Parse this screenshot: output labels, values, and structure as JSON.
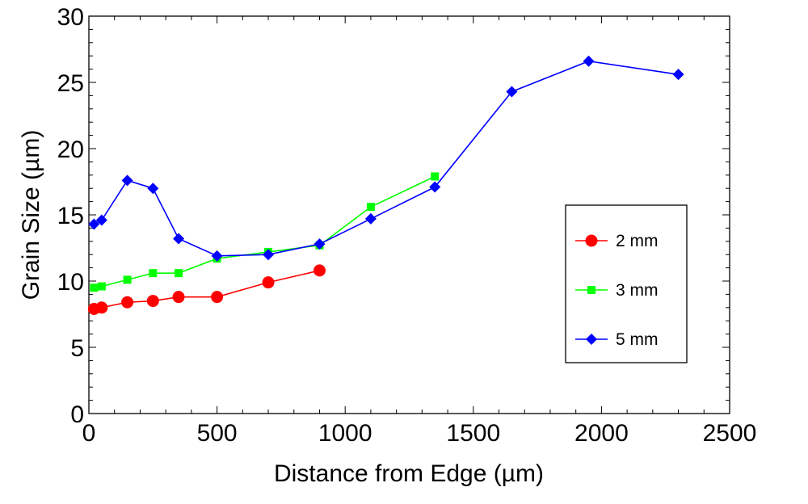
{
  "chart_data": {
    "type": "line",
    "title": "",
    "xlabel": "Distance from Edge (µm)",
    "ylabel": "Grain Size (µm)",
    "xlim": [
      0,
      2500
    ],
    "ylim": [
      0,
      30
    ],
    "xticks": [
      0,
      500,
      1000,
      1500,
      2000,
      2500
    ],
    "yticks": [
      0,
      5,
      10,
      15,
      20,
      25,
      30
    ],
    "grid": false,
    "legend_position": "right",
    "series": [
      {
        "name": "2 mm",
        "color": "#ff0000",
        "marker": "circle",
        "x": [
          20,
          50,
          150,
          250,
          350,
          500,
          700,
          900
        ],
        "y": [
          7.9,
          8.0,
          8.4,
          8.5,
          8.8,
          8.8,
          9.9,
          10.8
        ]
      },
      {
        "name": "3 mm",
        "color": "#00ff00",
        "marker": "square",
        "x": [
          20,
          50,
          150,
          250,
          350,
          500,
          700,
          900,
          1100,
          1350
        ],
        "y": [
          9.5,
          9.6,
          10.1,
          10.6,
          10.6,
          11.7,
          12.2,
          12.7,
          15.6,
          17.9
        ]
      },
      {
        "name": "5 mm",
        "color": "#0000ff",
        "marker": "diamond",
        "x": [
          20,
          50,
          150,
          250,
          350,
          500,
          700,
          900,
          1100,
          1350,
          1650,
          1950,
          2300
        ],
        "y": [
          14.3,
          14.6,
          17.6,
          17.0,
          13.2,
          11.9,
          12.0,
          12.8,
          14.7,
          17.1,
          24.3,
          26.6,
          25.6
        ]
      }
    ]
  }
}
